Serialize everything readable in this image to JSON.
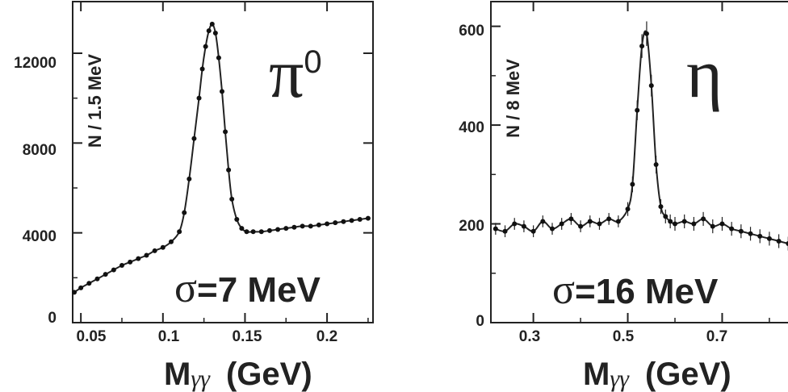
{
  "chart_data": [
    {
      "type": "line",
      "particle": "π",
      "particle_sup": "0",
      "resolution_label": "σ=7 MeV",
      "resolution_sigma": "σ",
      "resolution_rest": "=7 MeV",
      "ylabel": "N / 1.5 MeV",
      "xlabel_main": "M",
      "xlabel_sub": "γγ",
      "xlabel_unit": "(GeV)",
      "xlim": [
        0.045,
        0.228
      ],
      "ylim": [
        0,
        14300
      ],
      "x_ticks": [
        "0.05",
        "0.1",
        "0.15",
        "0.2"
      ],
      "y_ticks": [
        "0",
        "4000",
        "8000",
        "12000"
      ],
      "grid": false,
      "series": [
        {
          "style": "points-with-fit",
          "x": [
            0.046,
            0.05,
            0.055,
            0.06,
            0.065,
            0.07,
            0.075,
            0.08,
            0.085,
            0.09,
            0.095,
            0.1,
            0.105,
            0.11,
            0.113,
            0.116,
            0.119,
            0.122,
            0.124,
            0.126,
            0.128,
            0.13,
            0.132,
            0.134,
            0.136,
            0.138,
            0.14,
            0.142,
            0.145,
            0.148,
            0.151,
            0.155,
            0.16,
            0.165,
            0.17,
            0.175,
            0.18,
            0.185,
            0.19,
            0.195,
            0.2,
            0.205,
            0.21,
            0.215,
            0.22,
            0.225
          ],
          "y": [
            1350,
            1550,
            1750,
            1950,
            2150,
            2350,
            2550,
            2700,
            2850,
            3000,
            3200,
            3350,
            3600,
            4050,
            4900,
            6400,
            8200,
            10000,
            11300,
            12300,
            13000,
            13300,
            12900,
            11800,
            10300,
            8500,
            6800,
            5500,
            4600,
            4200,
            4050,
            4050,
            4050,
            4100,
            4150,
            4200,
            4250,
            4300,
            4300,
            4350,
            4400,
            4450,
            4500,
            4550,
            4600,
            4650
          ]
        }
      ]
    },
    {
      "type": "line",
      "particle": "η",
      "resolution_label": "σ=16 MeV",
      "resolution_sigma": "σ",
      "resolution_rest": "=16 MeV",
      "ylabel": "N / 8 MeV",
      "xlabel_main": "M",
      "xlabel_sub": "γγ",
      "xlabel_unit": "(GeV)",
      "xlim": [
        0.21,
        0.86
      ],
      "ylim": [
        0,
        650
      ],
      "x_ticks": [
        "0.3",
        "0.5",
        "0.7"
      ],
      "y_ticks": [
        "0",
        "200",
        "400",
        "600"
      ],
      "grid": false,
      "series": [
        {
          "style": "points-with-errors-and-fit",
          "x": [
            0.22,
            0.24,
            0.26,
            0.28,
            0.3,
            0.32,
            0.34,
            0.36,
            0.38,
            0.4,
            0.42,
            0.44,
            0.46,
            0.48,
            0.5,
            0.51,
            0.52,
            0.53,
            0.54,
            0.55,
            0.56,
            0.57,
            0.58,
            0.59,
            0.6,
            0.62,
            0.64,
            0.66,
            0.68,
            0.7,
            0.72,
            0.74,
            0.76,
            0.78,
            0.8,
            0.82,
            0.84,
            0.86
          ],
          "y": [
            190,
            185,
            200,
            195,
            185,
            205,
            190,
            200,
            210,
            195,
            205,
            200,
            210,
            205,
            230,
            280,
            430,
            560,
            585,
            480,
            320,
            235,
            215,
            205,
            200,
            205,
            200,
            210,
            195,
            200,
            190,
            185,
            180,
            175,
            170,
            165,
            160,
            155
          ],
          "err": [
            12,
            12,
            12,
            12,
            12,
            12,
            12,
            12,
            12,
            12,
            12,
            12,
            12,
            12,
            14,
            16,
            20,
            24,
            25,
            22,
            18,
            15,
            14,
            14,
            14,
            14,
            14,
            14,
            14,
            14,
            14,
            14,
            14,
            14,
            14,
            14,
            14,
            14
          ]
        }
      ]
    }
  ]
}
